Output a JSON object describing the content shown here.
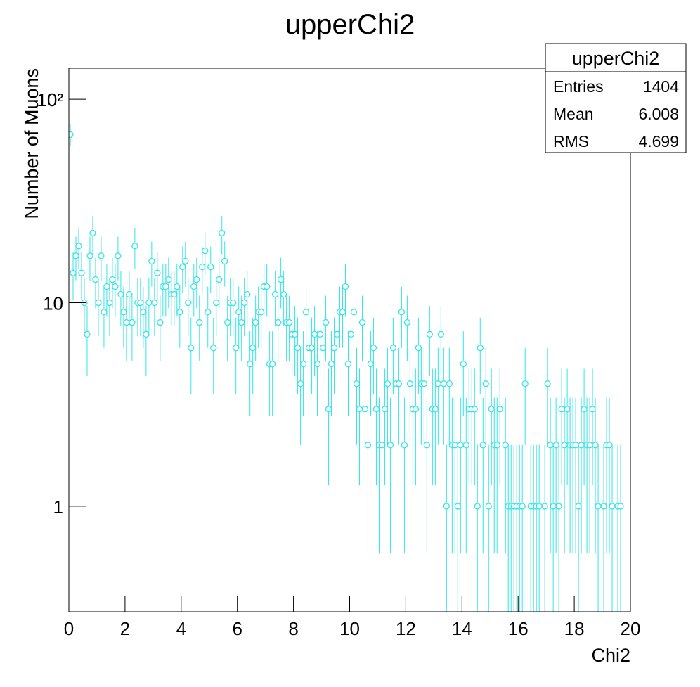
{
  "chart_data": {
    "type": "scatter",
    "title": "upperChi2",
    "x_label": "Chi2",
    "y_label": "Number of Muons",
    "color": "#33e6e6",
    "error_bars": "poisson",
    "log_y": true,
    "bin_width": 0.1,
    "xlim": [
      0,
      20
    ],
    "xticks": [
      0,
      2,
      4,
      6,
      8,
      10,
      12,
      14,
      16,
      18,
      20
    ],
    "ylim": [
      0.303,
      142
    ],
    "yticks": [
      1,
      10,
      {
        "value": 100,
        "label": "10²"
      }
    ],
    "x": [
      0.05,
      0.15,
      0.25,
      0.35,
      0.45,
      0.55,
      0.65,
      0.75,
      0.85,
      0.95,
      1.05,
      1.15,
      1.25,
      1.35,
      1.45,
      1.55,
      1.65,
      1.75,
      1.85,
      1.95,
      2.05,
      2.15,
      2.25,
      2.35,
      2.45,
      2.55,
      2.65,
      2.75,
      2.85,
      2.95,
      3.05,
      3.15,
      3.25,
      3.35,
      3.45,
      3.55,
      3.65,
      3.75,
      3.85,
      3.95,
      4.05,
      4.15,
      4.25,
      4.35,
      4.45,
      4.55,
      4.65,
      4.75,
      4.85,
      4.95,
      5.05,
      5.15,
      5.25,
      5.35,
      5.45,
      5.55,
      5.65,
      5.75,
      5.85,
      5.95,
      6.05,
      6.15,
      6.25,
      6.35,
      6.45,
      6.55,
      6.65,
      6.75,
      6.85,
      6.95,
      7.05,
      7.15,
      7.25,
      7.35,
      7.45,
      7.55,
      7.65,
      7.75,
      7.85,
      7.95,
      8.05,
      8.15,
      8.25,
      8.35,
      8.45,
      8.55,
      8.65,
      8.75,
      8.85,
      8.95,
      9.05,
      9.15,
      9.25,
      9.35,
      9.45,
      9.55,
      9.65,
      9.75,
      9.85,
      9.95,
      10.05,
      10.15,
      10.25,
      10.35,
      10.45,
      10.55,
      10.65,
      10.75,
      10.85,
      10.95,
      11.05,
      11.15,
      11.25,
      11.35,
      11.45,
      11.55,
      11.65,
      11.75,
      11.85,
      11.95,
      12.05,
      12.15,
      12.25,
      12.35,
      12.45,
      12.55,
      12.65,
      12.75,
      12.85,
      12.95,
      13.05,
      13.15,
      13.25,
      13.35,
      13.45,
      13.55,
      13.65,
      13.75,
      13.85,
      13.95,
      14.05,
      14.15,
      14.25,
      14.35,
      14.45,
      14.55,
      14.65,
      14.75,
      14.85,
      14.95,
      15.05,
      15.15,
      15.25,
      15.35,
      15.45,
      15.55,
      15.65,
      15.75,
      15.85,
      15.95,
      16.05,
      16.15,
      16.25,
      16.35,
      16.45,
      16.55,
      16.65,
      16.75,
      16.85,
      16.95,
      17.05,
      17.15,
      17.25,
      17.35,
      17.45,
      17.55,
      17.65,
      17.75,
      17.85,
      17.95,
      18.05,
      18.15,
      18.25,
      18.35,
      18.45,
      18.55,
      18.65,
      18.75,
      18.85,
      18.95,
      19.05,
      19.15,
      19.25,
      19.35,
      19.45,
      19.55,
      19.65,
      19.75,
      19.85,
      19.95
    ],
    "values": [
      67,
      14,
      17,
      19,
      14,
      10,
      7,
      17,
      22,
      13,
      10,
      17,
      9,
      12,
      10,
      13,
      12,
      17,
      11,
      9,
      8,
      11,
      8,
      19,
      10,
      10,
      9,
      7,
      10,
      16,
      10,
      14,
      8,
      12,
      12,
      13,
      11,
      11,
      12,
      9,
      15,
      16,
      10,
      6,
      12,
      13,
      8,
      15,
      18,
      9,
      15,
      6,
      10,
      13,
      22,
      16,
      8,
      10,
      10,
      6,
      9,
      8,
      10,
      11,
      5,
      6,
      8,
      9,
      9,
      12,
      12,
      5,
      5,
      11,
      8,
      13,
      11,
      8,
      8,
      7,
      7,
      6,
      4,
      5,
      9,
      6,
      6,
      7,
      5,
      7,
      6,
      8,
      3,
      5,
      6,
      7,
      9,
      9,
      12,
      5,
      7,
      9,
      4,
      3,
      8,
      3,
      2,
      5,
      6,
      3,
      2,
      2,
      3,
      4,
      2,
      6,
      4,
      4,
      9,
      2,
      8,
      4,
      3,
      3,
      6,
      4,
      4,
      2,
      7,
      3,
      3,
      4,
      7,
      4,
      1,
      4,
      2,
      2,
      1,
      2,
      5,
      2,
      3,
      3,
      3,
      1,
      6,
      2,
      4,
      1,
      3,
      2,
      2,
      3,
      null,
      2,
      1,
      1,
      1,
      1,
      1,
      1,
      4,
      null,
      1,
      1,
      1,
      1,
      null,
      1,
      4,
      2,
      1,
      2,
      1,
      3,
      2,
      3,
      2,
      2,
      2,
      1,
      2,
      3,
      2,
      2,
      3,
      2,
      1,
      null,
      1,
      2,
      2,
      1,
      null,
      1,
      1,
      null,
      null,
      null
    ],
    "stats_box": {
      "title": "upperChi2",
      "rows": [
        [
          "Entries",
          1404
        ],
        [
          "Mean",
          6.008
        ],
        [
          "RMS",
          4.699
        ]
      ]
    }
  }
}
